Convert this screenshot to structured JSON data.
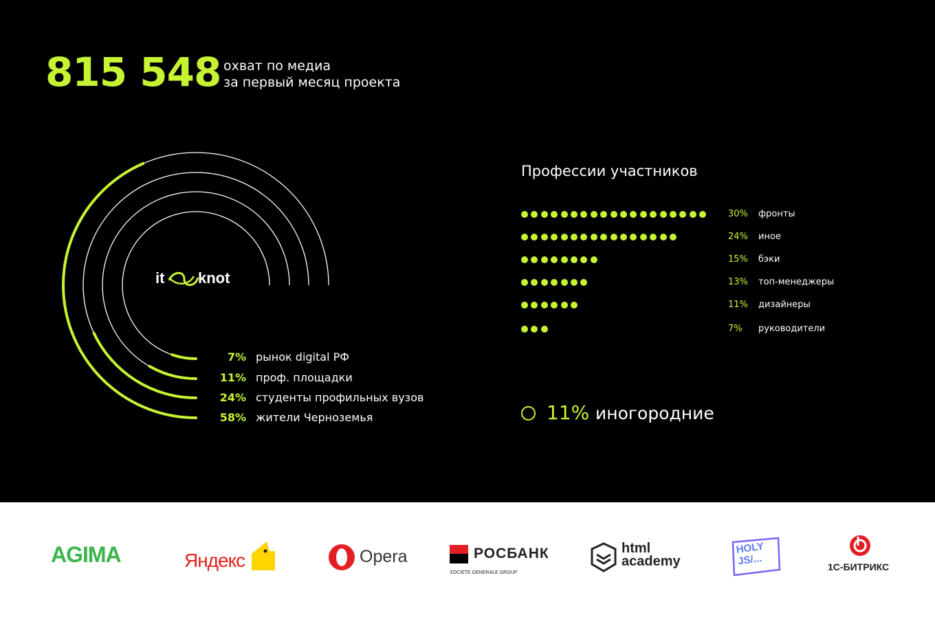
{
  "header": {
    "reach_number": "815 548",
    "caption_line1": "охват по медиа",
    "caption_line2": "за первый месяц проекта"
  },
  "center_logo": {
    "text_left": "it",
    "text_right": "knot"
  },
  "audience": [
    {
      "percent": "7%",
      "label": "рынок digital РФ",
      "share": 0.07
    },
    {
      "percent": "11%",
      "label": "проф. площадки",
      "share": 0.11
    },
    {
      "percent": "24%",
      "label": "студенты профильных вузов",
      "share": 0.24
    },
    {
      "percent": "58%",
      "label": "жители Черноземья",
      "share": 0.58
    }
  ],
  "professions": {
    "title": "Профессии участников",
    "items": [
      {
        "percent": "30%",
        "label": "фронты",
        "dots": 19
      },
      {
        "percent": "24%",
        "label": "иное",
        "dots": 16
      },
      {
        "percent": "15%",
        "label": "бэки",
        "dots": 8
      },
      {
        "percent": "13%",
        "label": "топ-менеджеры",
        "dots": 7
      },
      {
        "percent": "11%",
        "label": "дизайнеры",
        "dots": 6
      },
      {
        "percent": "7%",
        "label": "руководители",
        "dots": 3
      }
    ]
  },
  "nonresident": {
    "percent": "11%",
    "label": "иногородние"
  },
  "partners": [
    {
      "name": "AGIMA"
    },
    {
      "name": "Яндекс"
    },
    {
      "name": "Opera"
    },
    {
      "name": "РОСБАНК",
      "sub": "SOCIETE GENERALE GROUP"
    },
    {
      "name": "html academy",
      "line1": "html",
      "line2": "academy"
    },
    {
      "name": "HOLY JS",
      "line1": "HOLY",
      "line2": "JS/..."
    },
    {
      "name": "1С-БИТРИКС"
    }
  ],
  "colors": {
    "accent": "#c6f432",
    "background": "#000000",
    "text": "#ffffff",
    "footer": "#ffffff"
  }
}
